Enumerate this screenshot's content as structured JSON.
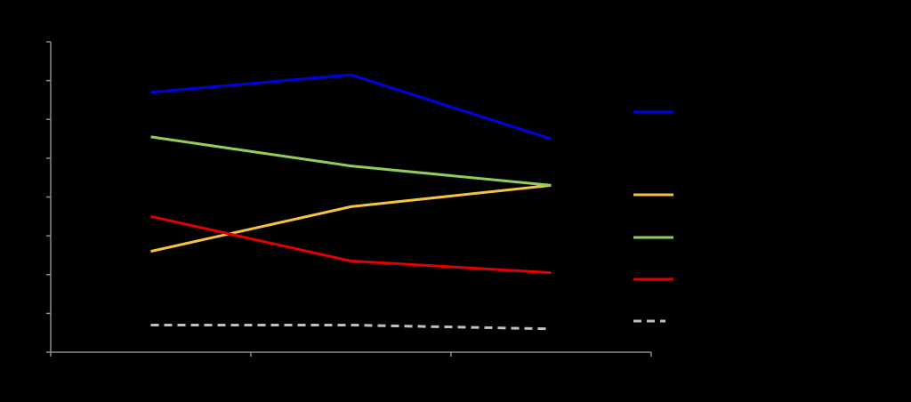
{
  "chart_data": {
    "type": "line",
    "x": [
      1,
      2,
      3
    ],
    "xlim": [
      0.5,
      3.5
    ],
    "ylim": [
      0,
      8
    ],
    "grid": false,
    "legend_position": "right",
    "series": [
      {
        "color": "#0000e0",
        "dash": "solid",
        "values": [
          6.7,
          7.15,
          5.5
        ]
      },
      {
        "color": "#f5c242",
        "dash": "solid",
        "values": [
          2.6,
          3.75,
          4.3
        ]
      },
      {
        "color": "#8fce5a",
        "dash": "solid",
        "values": [
          5.55,
          4.8,
          4.3
        ]
      },
      {
        "color": "#e00000",
        "dash": "solid",
        "values": [
          3.5,
          2.35,
          2.05
        ]
      },
      {
        "color": "#c0c0c0",
        "dash": "dashed",
        "values": [
          0.7,
          0.7,
          0.6
        ]
      }
    ],
    "legend_order": [
      0,
      1,
      2,
      3,
      4
    ]
  }
}
